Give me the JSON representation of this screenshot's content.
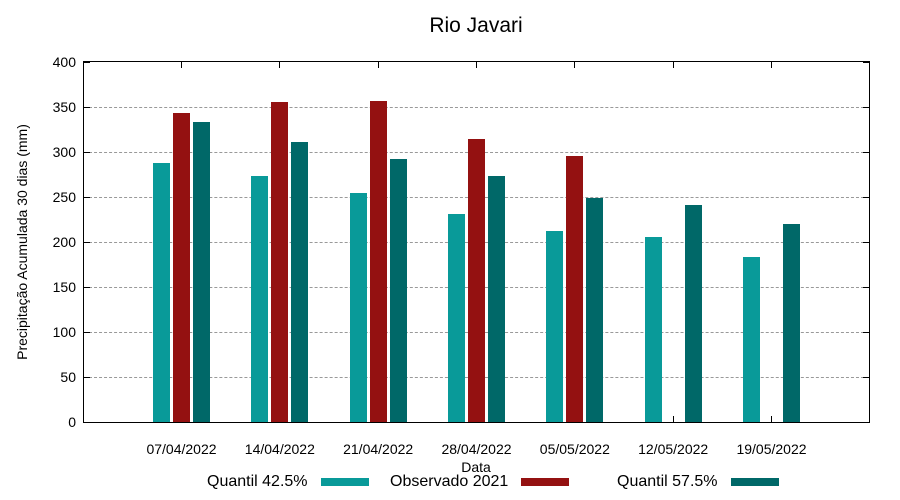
{
  "title": "Rio Javari",
  "chart_data": {
    "type": "bar",
    "title": "Rio Javari",
    "xlabel": "Data",
    "ylabel": "Precipitação Acumulada 30 dias (mm)",
    "categories": [
      "07/04/2022",
      "14/04/2022",
      "21/04/2022",
      "28/04/2022",
      "05/05/2022",
      "12/05/2022",
      "19/05/2022"
    ],
    "series": [
      {
        "name": "Quantil 42.5%",
        "color": "#099a99",
        "values": [
          288,
          273,
          254,
          231,
          212,
          206,
          183
        ]
      },
      {
        "name": "Observado 2021",
        "color": "#941111",
        "values": [
          343,
          356,
          357,
          314,
          296,
          null,
          null
        ]
      },
      {
        "name": "Quantil 57.5%",
        "color": "#006868",
        "values": [
          333,
          311,
          292,
          273,
          249,
          241,
          220
        ]
      }
    ],
    "ylim": [
      0,
      400
    ],
    "y_tick_step": 50,
    "grid": true,
    "grid_color": "#999999",
    "frame_color": "#000000",
    "background": "#ffffff",
    "legend_position": "bottom"
  }
}
